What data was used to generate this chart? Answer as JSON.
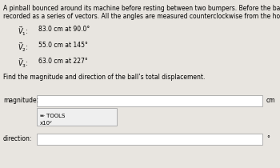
{
  "title_line1": "A pinball bounced around its machine before resting between two bumpers. Before the ball came to rest, its displacement was",
  "title_line2": "recorded as a series of vectors. All the angles are measured counterclockwise from the horizontal x-axis.",
  "vec1_val": "83.0 cm at 90.0°",
  "vec2_val": "55.0 cm at 145°",
  "vec3_val": "63.0 cm at 227°",
  "find_text": "Find the magnitude and direction of the ball’s total displacement.",
  "magnitude_label": "magnitude:",
  "direction_label": "direction:",
  "tools_label": "TOOLS",
  "tools_sub": "x10ʸ",
  "cm_label": "cm",
  "degree_label": "°",
  "bg_color": "#e8e5e0",
  "box_bg": "#ffffff",
  "box_edge": "#b0b0b0",
  "tools_bg": "#efefef",
  "font_size_body": 5.5,
  "font_size_small": 5.0,
  "font_size_vec": 6.0
}
